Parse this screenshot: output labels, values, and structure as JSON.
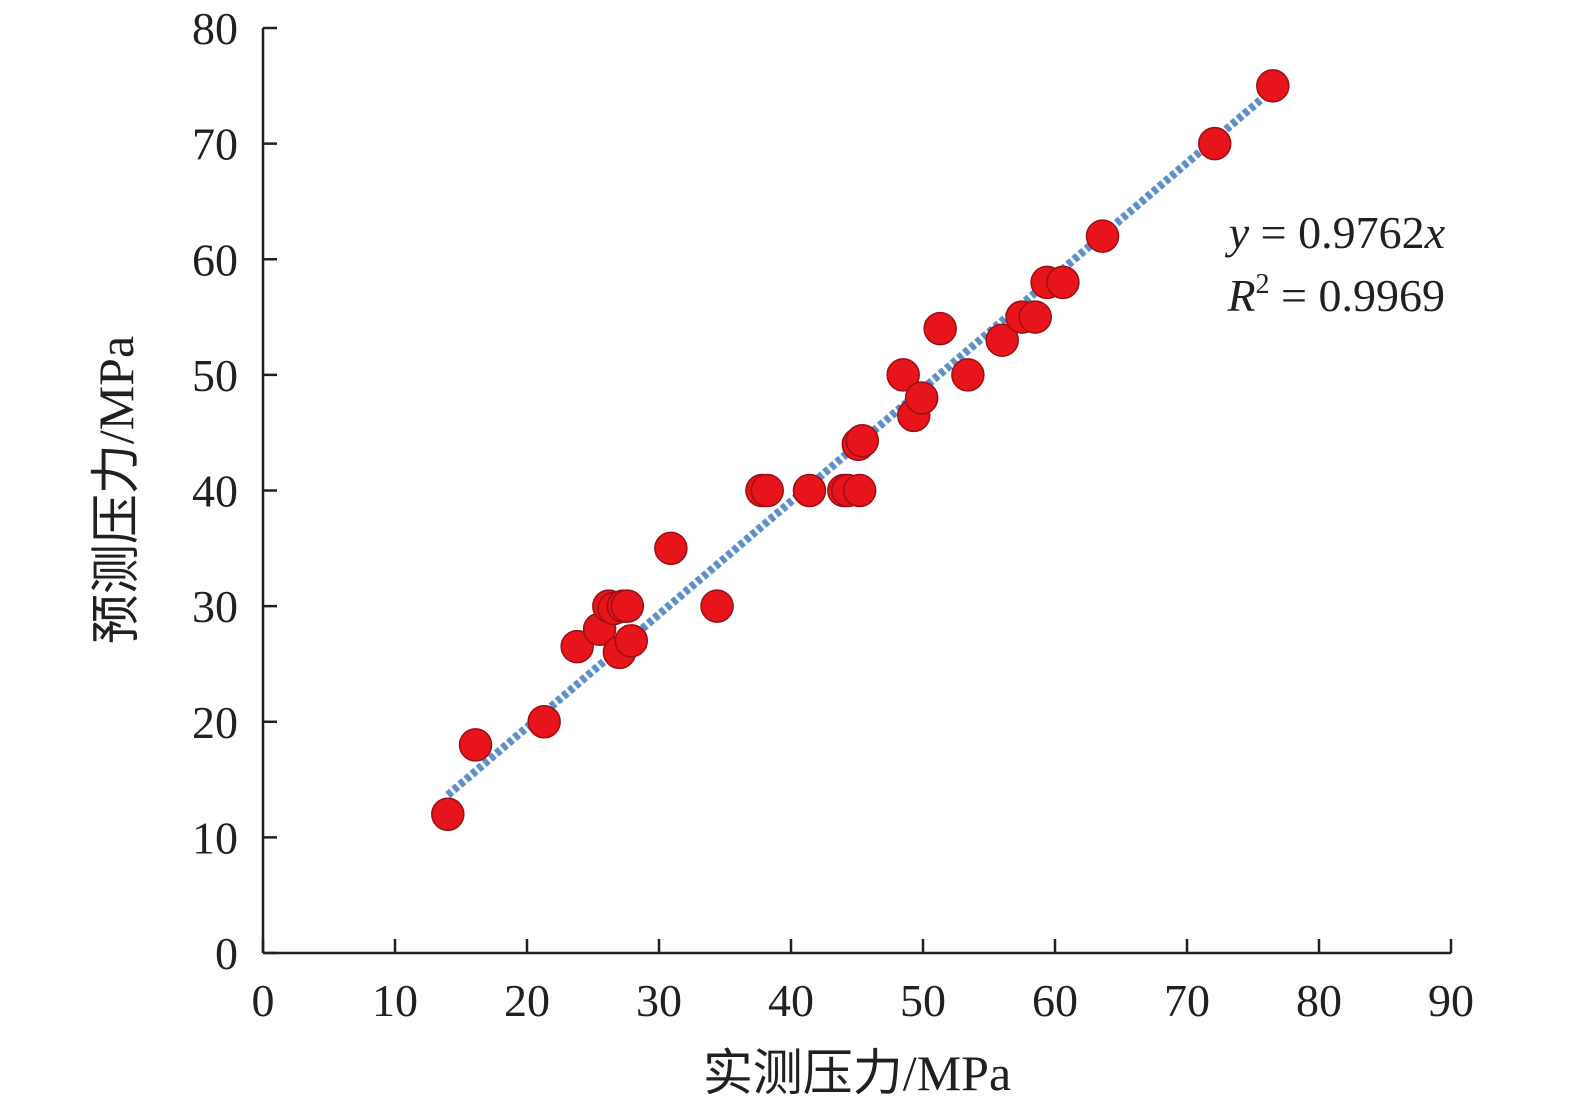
{
  "chart_data": {
    "type": "scatter",
    "xlabel": "实测压力/MPa",
    "ylabel": "预测压力/MPa",
    "xlim": [
      0,
      90
    ],
    "ylim": [
      0,
      80
    ],
    "xticks": [
      0,
      10,
      20,
      30,
      40,
      50,
      60,
      70,
      80,
      90
    ],
    "yticks": [
      0,
      10,
      20,
      30,
      40,
      50,
      60,
      70,
      80
    ],
    "grid": false,
    "legend": "none",
    "marker_color": "#e8141b",
    "marker_edge_color": "#9b0f12",
    "trendline_color": "#5b8fce",
    "trendline": {
      "type": "linear-through-origin",
      "slope": 0.9762,
      "x_range": [
        14,
        76.5
      ],
      "equation": {
        "var_y": "y",
        "eq_rest": " = 0.9762",
        "var_x": "x",
        "r_symbol": "R",
        "r_exp": "2",
        "r_rest": " = 0.9969"
      }
    },
    "x": [
      14,
      16.1,
      21.3,
      23.8,
      25.5,
      26.2,
      26.6,
      27,
      27.3,
      27.6,
      27.9,
      30.9,
      34.4,
      37.8,
      38.2,
      41.4,
      44,
      44.3,
      45.1,
      45.2,
      45.4,
      48.5,
      49.3,
      49.9,
      51.3,
      53.4,
      56,
      57.5,
      58.5,
      59.4,
      60.6,
      63.6,
      72.1,
      76.5
    ],
    "y": [
      12,
      18,
      20,
      26.5,
      28,
      30,
      29.8,
      26,
      30,
      30,
      27,
      35,
      30,
      40,
      40,
      40,
      40,
      40,
      44,
      40,
      44.3,
      50,
      46.5,
      48,
      54,
      50,
      53,
      55,
      55,
      58,
      58,
      62,
      70,
      75
    ]
  }
}
